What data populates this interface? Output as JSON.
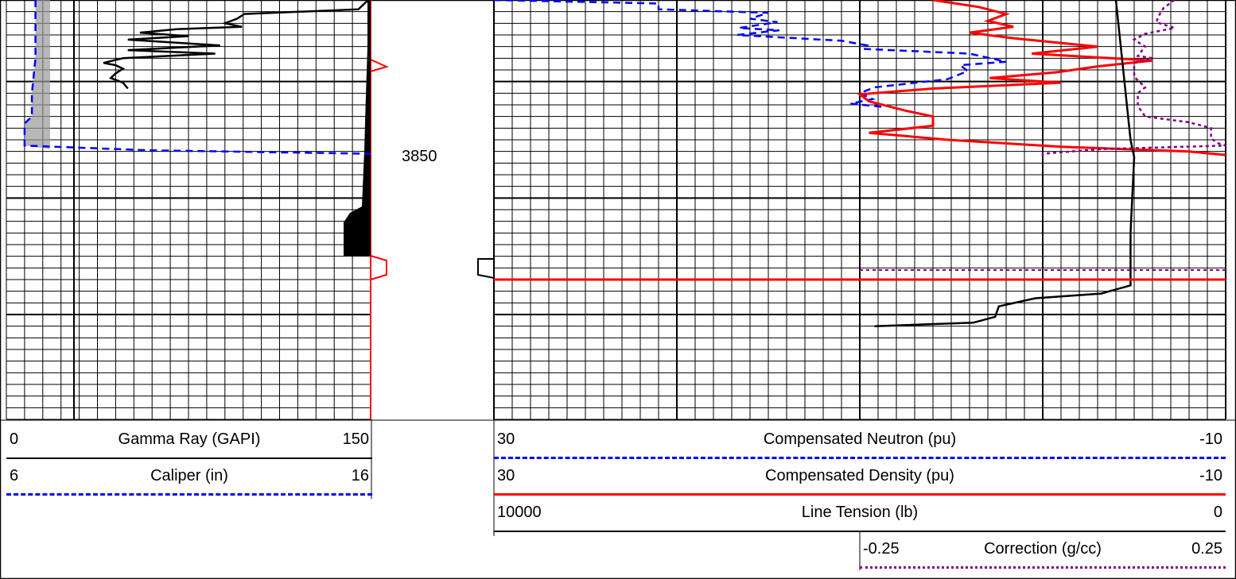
{
  "depth_track": {
    "label": "3850"
  },
  "legend": {
    "gamma_ray": {
      "lo": "0",
      "name": "Gamma Ray (GAPI)",
      "hi": "150",
      "color": "#000000"
    },
    "caliper": {
      "lo": "6",
      "name": "Caliper (in)",
      "hi": "16",
      "color": "#0000ff"
    },
    "neutron": {
      "lo": "30",
      "name": "Compensated Neutron (pu)",
      "hi": "-10",
      "color": "#0000ff"
    },
    "density": {
      "lo": "30",
      "name": "Compensated Density (pu)",
      "hi": "-10",
      "color": "#ff0000"
    },
    "tension": {
      "lo": "10000",
      "name": "Line Tension (lb)",
      "hi": "0",
      "color": "#000000"
    },
    "correction": {
      "lo": "-0.25",
      "name": "Correction (g/cc)",
      "hi": "0.25",
      "color": "#800080"
    }
  },
  "chart_data": {
    "type": "line",
    "depth_unit_note": "",
    "depth_axis": {
      "labeled_depth": 3850,
      "range": [
        3833,
        3869
      ]
    },
    "tracks": [
      {
        "track": 1,
        "series": [
          {
            "name": "Gamma Ray (GAPI)",
            "range": [
              0,
              150
            ],
            "style": "solid",
            "color": "#000000",
            "points": [
              [
                3833,
                149
              ],
              [
                3833.8,
                145
              ],
              [
                3834.2,
                98
              ],
              [
                3834.6,
                95
              ],
              [
                3835.0,
                90
              ],
              [
                3835.3,
                97
              ],
              [
                3835.5,
                70
              ],
              [
                3835.8,
                55
              ],
              [
                3836.1,
                75
              ],
              [
                3836.4,
                50
              ],
              [
                3836.9,
                88
              ],
              [
                3837.3,
                50
              ],
              [
                3837.6,
                86
              ],
              [
                3838.0,
                48
              ],
              [
                3838.4,
                40
              ],
              [
                3838.6,
                45
              ],
              [
                3838.9,
                48
              ],
              [
                3839.3,
                45
              ],
              [
                3839.7,
                43
              ],
              [
                3840.1,
                48
              ],
              [
                3840.6,
                50
              ]
            ]
          },
          {
            "name": "Caliper (in)",
            "range": [
              6,
              16
            ],
            "style": "dashed",
            "color": "#0000ff",
            "points": [
              [
                3833,
                6.8
              ],
              [
                3838,
                6.8
              ],
              [
                3841,
                6.7
              ],
              [
                3843,
                6.7
              ],
              [
                3843.6,
                6.5
              ],
              [
                3845.5,
                6.5
              ],
              [
                3845.9,
                9.9
              ],
              [
                3846.2,
                16
              ]
            ]
          }
        ]
      },
      {
        "track": 2,
        "series": [
          {
            "name": "Compensated Neutron (pu)",
            "range": [
              30,
              -10
            ],
            "style": "dashed",
            "color": "#0000ff",
            "points": [
              [
                3833,
                30
              ],
              [
                3833.3,
                21
              ],
              [
                3833.8,
                21
              ],
              [
                3834.1,
                15
              ],
              [
                3834.6,
                16
              ],
              [
                3834.9,
                14.5
              ],
              [
                3835.4,
                16.6
              ],
              [
                3835.6,
                14.4
              ],
              [
                3836.0,
                16.7
              ],
              [
                3836.5,
                11
              ],
              [
                3836.9,
                9.6
              ],
              [
                3837.2,
                9.8
              ],
              [
                3837.6,
                4
              ],
              [
                3838.3,
                2
              ],
              [
                3838.6,
                4.5
              ],
              [
                3839.1,
                4.1
              ],
              [
                3839.8,
                5.2
              ],
              [
                3840.5,
                9.2
              ],
              [
                3841.0,
                10
              ],
              [
                3841.5,
                9.3
              ],
              [
                3841.9,
                10.5
              ],
              [
                3842.2,
                8.6
              ]
            ]
          },
          {
            "name": "Compensated Density (pu)",
            "range": [
              30,
              -10
            ],
            "style": "solid",
            "color": "#ff0000",
            "points": [
              [
                3833,
                6
              ],
              [
                3833.6,
                3.5
              ],
              [
                3834.2,
                2
              ],
              [
                3834.8,
                3
              ],
              [
                3835.3,
                1.6
              ],
              [
                3835.8,
                4
              ],
              [
                3836.3,
                1.5
              ],
              [
                3837.0,
                -3
              ],
              [
                3837.6,
                0.6
              ],
              [
                3838.2,
                -6
              ],
              [
                3838.7,
                -3
              ],
              [
                3839.2,
                -0.8
              ],
              [
                3839.7,
                2.9
              ],
              [
                3840.1,
                -1
              ],
              [
                3840.6,
                6
              ],
              [
                3841.1,
                10
              ],
              [
                3841.7,
                9.5
              ],
              [
                3842.5,
                7.5
              ],
              [
                3843.0,
                6
              ],
              [
                3843.8,
                6
              ],
              [
                3844.4,
                9.5
              ],
              [
                3845.0,
                5.2
              ],
              [
                3845.6,
                -1
              ],
              [
                3846.0,
                -8
              ],
              [
                3846.3,
                -10
              ]
            ]
          },
          {
            "name": "Line Tension (lb)",
            "range": [
              10000,
              0
            ],
            "style": "solid",
            "color": "#000000",
            "points": [
              [
                3833,
                1500
              ],
              [
                3845,
                1300
              ],
              [
                3846.5,
                1250
              ],
              [
                3853,
                1300
              ],
              [
                3857.5,
                1300
              ],
              [
                3858.2,
                1700
              ],
              [
                3858.6,
                2600
              ],
              [
                3859.3,
                3100
              ],
              [
                3860.2,
                3150
              ],
              [
                3860.7,
                3450
              ],
              [
                3861,
                4800
              ]
            ]
          }
        ]
      },
      {
        "track": 3,
        "series": [
          {
            "name": "Correction (g/cc)",
            "range": [
              -0.25,
              0.25
            ],
            "style": "dotted",
            "color": "#800080",
            "points": [
              [
                3833,
                0.18
              ],
              [
                3833.7,
                0.165
              ],
              [
                3834.2,
                0.16
              ],
              [
                3834.9,
                0.155
              ],
              [
                3835.4,
                0.18
              ],
              [
                3835.9,
                0.14
              ],
              [
                3836.4,
                0.125
              ],
              [
                3837.0,
                0.14
              ],
              [
                3837.8,
                0.13
              ],
              [
                3838.0,
                0.15
              ],
              [
                3838.4,
                0.125
              ],
              [
                3839.0,
                0.125
              ],
              [
                3839.6,
                0.125
              ],
              [
                3840.5,
                0.14
              ],
              [
                3841.0,
                0.13
              ],
              [
                3842.1,
                0.13
              ],
              [
                3843.0,
                0.14
              ],
              [
                3843.5,
                0.2
              ],
              [
                3844.0,
                0.23
              ],
              [
                3844.9,
                0.23
              ],
              [
                3845.3,
                0.24
              ],
              [
                3845.5,
                0.25
              ],
              [
                3845.8,
                0.08
              ],
              [
                3846.2,
                0.0
              ],
              [
                3846.6,
                0.0
              ]
            ]
          }
        ]
      }
    ]
  }
}
